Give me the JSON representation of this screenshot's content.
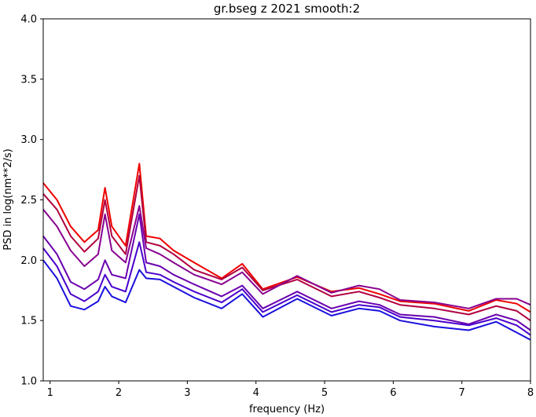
{
  "chart_data": {
    "type": "line",
    "title": "gr.bseg z 2021 smooth:2",
    "xlabel": "frequency (Hz)",
    "ylabel": "PSD in log(nm**2/s)",
    "xlim": [
      0.9,
      8.0
    ],
    "ylim": [
      1.0,
      4.0
    ],
    "x_ticks": [
      1,
      2,
      3,
      4,
      5,
      6,
      7,
      8
    ],
    "y_ticks": [
      1.0,
      1.5,
      2.0,
      2.5,
      3.0,
      3.5,
      4.0
    ],
    "grid": false,
    "x": [
      0.9,
      1.1,
      1.3,
      1.5,
      1.7,
      1.8,
      1.9,
      2.1,
      2.3,
      2.4,
      2.6,
      2.8,
      3.1,
      3.5,
      3.8,
      4.1,
      4.6,
      5.1,
      5.5,
      5.8,
      6.1,
      6.6,
      7.1,
      7.5,
      7.8,
      8.0
    ],
    "series": [
      {
        "color": "#ee0000",
        "values": [
          2.64,
          2.5,
          2.28,
          2.15,
          2.25,
          2.6,
          2.28,
          2.12,
          2.8,
          2.2,
          2.18,
          2.08,
          1.98,
          1.85,
          1.97,
          1.76,
          1.86,
          1.74,
          1.77,
          1.72,
          1.66,
          1.64,
          1.58,
          1.67,
          1.64,
          1.57
        ]
      },
      {
        "color": "#b00040",
        "values": [
          2.55,
          2.42,
          2.2,
          2.07,
          2.18,
          2.5,
          2.2,
          2.05,
          2.7,
          2.15,
          2.12,
          2.05,
          1.92,
          1.84,
          1.94,
          1.75,
          1.84,
          1.7,
          1.74,
          1.69,
          1.63,
          1.6,
          1.55,
          1.62,
          1.58,
          1.5
        ]
      },
      {
        "color": "#880090",
        "values": [
          2.42,
          2.28,
          2.08,
          1.95,
          2.05,
          2.38,
          2.08,
          1.98,
          2.45,
          2.1,
          2.05,
          1.98,
          1.88,
          1.8,
          1.9,
          1.72,
          1.87,
          1.73,
          1.79,
          1.76,
          1.67,
          1.65,
          1.6,
          1.68,
          1.68,
          1.63
        ]
      },
      {
        "color": "#6a00b0",
        "values": [
          2.2,
          2.05,
          1.82,
          1.76,
          1.84,
          2.0,
          1.88,
          1.85,
          2.38,
          1.98,
          1.95,
          1.88,
          1.8,
          1.7,
          1.79,
          1.6,
          1.74,
          1.6,
          1.66,
          1.63,
          1.55,
          1.53,
          1.47,
          1.55,
          1.5,
          1.42
        ]
      },
      {
        "color": "#4a00cc",
        "values": [
          2.1,
          1.95,
          1.72,
          1.66,
          1.74,
          1.88,
          1.78,
          1.74,
          2.15,
          1.9,
          1.88,
          1.82,
          1.74,
          1.65,
          1.76,
          1.57,
          1.71,
          1.57,
          1.63,
          1.61,
          1.53,
          1.5,
          1.46,
          1.52,
          1.46,
          1.38
        ]
      },
      {
        "color": "#1a10dd",
        "values": [
          2.0,
          1.85,
          1.62,
          1.59,
          1.66,
          1.78,
          1.7,
          1.65,
          1.92,
          1.85,
          1.84,
          1.78,
          1.69,
          1.6,
          1.72,
          1.53,
          1.68,
          1.54,
          1.6,
          1.58,
          1.5,
          1.45,
          1.42,
          1.49,
          1.4,
          1.34
        ]
      }
    ]
  }
}
